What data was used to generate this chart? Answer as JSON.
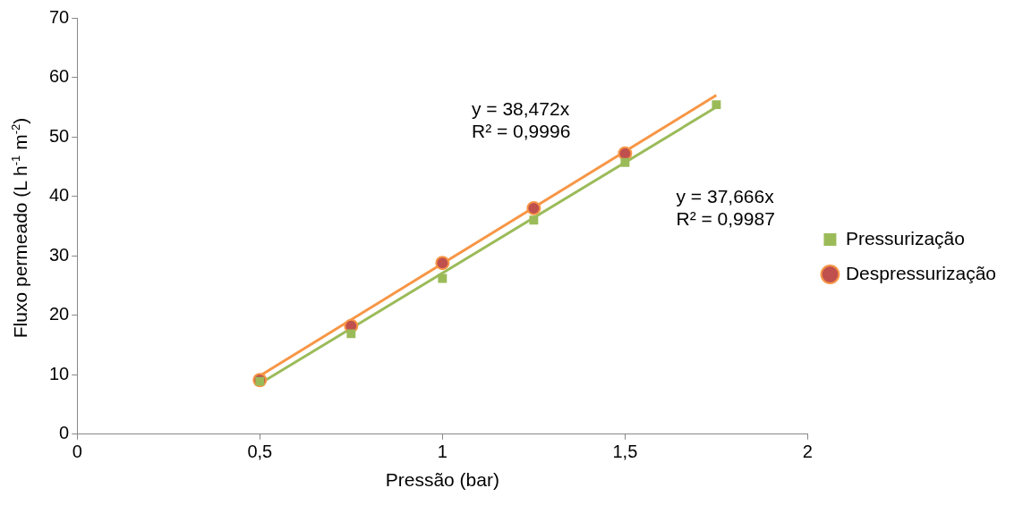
{
  "chart_data": {
    "type": "scatter",
    "xlabel": "Pressão (bar)",
    "ylabel": "Fluxo permeado (L h$^{-1}$ m$^{-2}$)",
    "xlim": [
      0,
      2
    ],
    "xticks": [
      0,
      {
        "value": 0.5,
        "label": "0,5"
      },
      1,
      {
        "value": 1.5,
        "label": "1,5"
      },
      2
    ],
    "ylim": [
      0,
      70
    ],
    "yticks": [
      0,
      10,
      20,
      30,
      40,
      50,
      60,
      70
    ],
    "grid": false,
    "legend": "right",
    "series": [
      {
        "name": "Pressurização",
        "color": "#9bbb59",
        "marker": "square",
        "x": [
          0.5,
          0.75,
          1,
          1.25,
          1.5,
          1.75
        ],
        "values": [
          8.9,
          16.9,
          26.2,
          36.0,
          45.7,
          55.4
        ]
      },
      {
        "name": "Despressurização",
        "color": "#c0504d",
        "marker": "circle",
        "x": [
          0.5,
          0.75,
          1,
          1.25,
          1.5
        ],
        "values": [
          9.1,
          18.2,
          28.8,
          38.0,
          47.2
        ]
      },
      {
        "type": "line",
        "color": "#9bbb59",
        "marker": "none",
        "x": [
          0.5,
          1.75
        ],
        "values": [
          8.5,
          55
        ]
      },
      {
        "type": "line",
        "color": "#f79646",
        "marker": "none",
        "x": [
          0.5,
          1.75
        ],
        "values": [
          9.8,
          57
        ]
      }
    ],
    "annotations": [
      "y = 38,472x\nR² = 0,9996",
      "y = 37,666x\nR² = 0,9987"
    ]
  }
}
